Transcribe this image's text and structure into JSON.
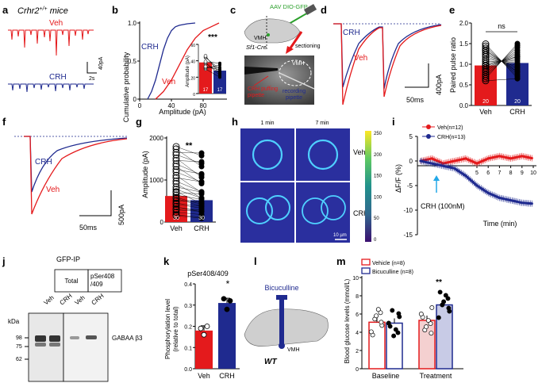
{
  "colors": {
    "veh": "#e41a1c",
    "crh": "#1f2a8f",
    "black": "#111111"
  },
  "panel_a": {
    "letter": "a",
    "title_gene": "Crhr2",
    "title_sup": "+/+",
    "title_rest": " mice",
    "veh_label": "Veh",
    "crh_label": "CRH",
    "scale_y": "40pA",
    "scale_x": "2s"
  },
  "panel_b": {
    "letter": "b",
    "ylabel": "Cumulative probability",
    "xlabel": "Amplitude (pA)",
    "crh_label": "CRH",
    "veh_label": "Veh",
    "inset_ylabel": "Amplitude (pA)",
    "stars": "***",
    "n_veh": "17",
    "n_crh": "17"
  },
  "panel_c": {
    "letter": "c",
    "virus": "AAV DIO-GFP",
    "sectioning": "sectioning",
    "vmh": "VMH",
    "cre": "Sf1-Cre",
    "vmh2": "VMH",
    "puff1": "CRH puffing",
    "puff2": "pipette",
    "rec1": "recording",
    "rec2": "pipette"
  },
  "panel_d": {
    "letter": "d",
    "crh_label": "CRH",
    "veh_label": "Veh",
    "scale_x": "50ms",
    "scale_y": "400pA"
  },
  "panel_e": {
    "letter": "e",
    "ylabel": "Paired pulse ratio",
    "ns": "ns",
    "n_veh": "20",
    "n_crh": "20",
    "cat_veh": "Veh",
    "cat_crh": "CRH"
  },
  "panel_f": {
    "letter": "f",
    "crh_label": "CRH",
    "veh_label": "Veh",
    "scale_x": "50ms",
    "scale_y": "500pA"
  },
  "panel_g": {
    "letter": "g",
    "ylabel": "Amplitude (pA)",
    "stars": "**",
    "n_veh": "30",
    "n_crh": "30",
    "cat_veh": "Veh",
    "cat_crh": "CRH"
  },
  "panel_h": {
    "letter": "h",
    "t1": "1 min",
    "t2": "7 min",
    "row1": "Veh",
    "row2": "CRH",
    "scalebar": "10 µm",
    "colorbar_ticks": [
      "250",
      "200",
      "150",
      "100",
      "50",
      "0"
    ]
  },
  "panel_i": {
    "letter": "i",
    "legend_veh": "Veh(n=12)",
    "legend_crh": "CRH(n=13)",
    "ylabel": "ΔF/F (%)",
    "xlabel": "Time (min)",
    "crh_arrow": "CRH (100nM)"
  },
  "panel_j": {
    "letter": "j",
    "title": "GFP-IP",
    "col_total": "Total",
    "col_p1": "pSer408",
    "col_p2": "/409",
    "lane1": "Veh",
    "lane2": "CRH",
    "lane3": "Veh",
    "lane4": "CRH",
    "kda": "kDa",
    "marker_98": "98",
    "marker_75": "75",
    "marker_62": "62",
    "band": "GABAA β3"
  },
  "panel_k": {
    "letter": "k",
    "title": "pSer408/409",
    "ylabel1": "Phosphorylation level",
    "ylabel2": "(relative to total)",
    "star": "*",
    "cat_veh": "Veh",
    "cat_crh": "CRH"
  },
  "panel_l": {
    "letter": "l",
    "drug": "Bicuculline",
    "vmh": "VMH",
    "wt": "WT"
  },
  "panel_m": {
    "letter": "m",
    "legend_vehicle": "Vehicle (n=8)",
    "legend_bic": "Bicuculline (n=8)",
    "ylabel": "Blood glucose levels (mmol/L)",
    "stars": "**",
    "cat_baseline": "Baseline",
    "cat_treatment": "Treatment"
  },
  "chart_data": [
    {
      "id": "b",
      "type": "line",
      "title": "",
      "xlabel": "Amplitude (pA)",
      "ylabel": "Cumulative probability",
      "x_ticks": [
        "0",
        "40",
        "80"
      ],
      "y_ticks": [
        "0",
        "0.5",
        "1.0"
      ],
      "xlim": [
        0,
        110
      ],
      "ylim": [
        0,
        1
      ],
      "series": [
        {
          "name": "CRH",
          "x": [
            10,
            15,
            20,
            25,
            30,
            35,
            40,
            45,
            50,
            60,
            70
          ],
          "y": [
            0,
            0.1,
            0.25,
            0.45,
            0.65,
            0.8,
            0.9,
            0.95,
            0.97,
            0.99,
            1.0
          ]
        },
        {
          "name": "Veh",
          "x": [
            20,
            30,
            40,
            45,
            50,
            55,
            60,
            70,
            80,
            90,
            100
          ],
          "y": [
            0,
            0.1,
            0.25,
            0.35,
            0.45,
            0.55,
            0.65,
            0.8,
            0.9,
            0.95,
            1.0
          ]
        }
      ]
    },
    {
      "id": "b_inset",
      "type": "bar",
      "ylabel": "Amplitude (pA)",
      "y_ticks": [
        "0",
        "20",
        "40",
        "60"
      ],
      "ylim": [
        0,
        60
      ],
      "categories": [
        "Veh",
        "CRH"
      ],
      "values": [
        38,
        28
      ],
      "n": [
        17,
        17
      ]
    },
    {
      "id": "e",
      "type": "bar",
      "ylabel": "Paired pulse ratio",
      "y_ticks": [
        "0.0",
        "0.5",
        "1.0",
        "1.5",
        "2.0"
      ],
      "ylim": [
        0,
        2
      ],
      "categories": [
        "Veh",
        "CRH"
      ],
      "values": [
        0.97,
        1.03
      ],
      "n": [
        20,
        20
      ]
    },
    {
      "id": "g",
      "type": "bar",
      "ylabel": "Amplitude (pA)",
      "y_ticks": [
        "0",
        "1000",
        "2000"
      ],
      "ylim": [
        0,
        2000
      ],
      "categories": [
        "Veh",
        "CRH"
      ],
      "values": [
        620,
        520
      ],
      "n": [
        30,
        30
      ]
    },
    {
      "id": "i",
      "type": "line",
      "xlabel": "Time (min)",
      "ylabel": "ΔF/F (%)",
      "x_ticks": [
        "5",
        "6",
        "7",
        "8",
        "9",
        "10"
      ],
      "y_ticks": [
        "5",
        "0",
        "-5",
        "-10",
        "-15"
      ],
      "xlim": [
        0,
        10
      ],
      "ylim": [
        -15,
        5
      ],
      "series": [
        {
          "name": "Veh(n=12)",
          "x": [
            0,
            1,
            2,
            3,
            4,
            5,
            6,
            7,
            8,
            9,
            10
          ],
          "y": [
            0,
            0.5,
            -0.5,
            0,
            0.5,
            -0.5,
            0.5,
            1,
            0.5,
            1,
            0.5
          ]
        },
        {
          "name": "CRH(n=13)",
          "x": [
            0,
            1,
            2,
            3,
            4,
            5,
            6,
            7,
            8,
            9,
            10
          ],
          "y": [
            0,
            -0.5,
            -1,
            -1.5,
            -3,
            -5,
            -6.5,
            -7.5,
            -8,
            -8.5,
            -8.7
          ]
        }
      ]
    },
    {
      "id": "k",
      "type": "bar",
      "title": "pSer408/409",
      "ylabel": "Phosphorylation level (relative to total)",
      "y_ticks": [
        "0.0",
        "0.1",
        "0.2",
        "0.3",
        "0.4"
      ],
      "ylim": [
        0,
        0.4
      ],
      "categories": [
        "Veh",
        "CRH"
      ],
      "values": [
        0.18,
        0.31
      ]
    },
    {
      "id": "m",
      "type": "bar",
      "ylabel": "Blood glucose levels (mmol/L)",
      "y_ticks": [
        "0",
        "2",
        "4",
        "6",
        "8",
        "10"
      ],
      "ylim": [
        0,
        10
      ],
      "categories": [
        "Baseline",
        "Treatment"
      ],
      "series": [
        {
          "name": "Vehicle (n=8)",
          "values": [
            5.1,
            5.3
          ]
        },
        {
          "name": "Bicuculline (n=8)",
          "values": [
            5.0,
            7.0
          ]
        }
      ]
    }
  ]
}
